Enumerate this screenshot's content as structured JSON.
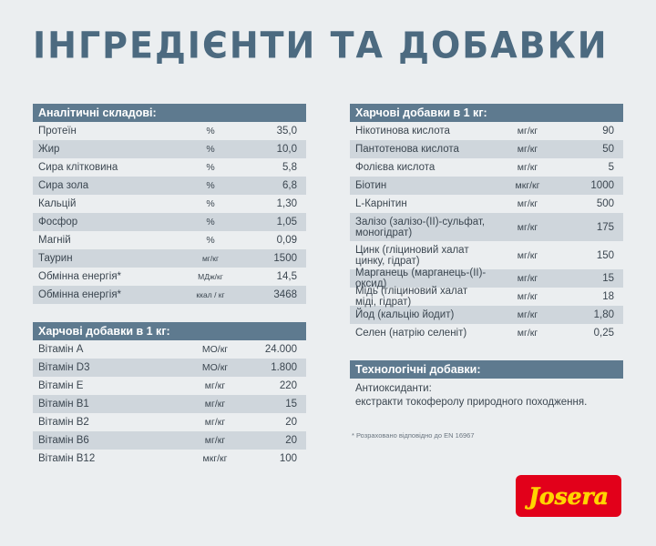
{
  "title": "ІНГРЕДІЄНТИ ТА ДОБАВКИ",
  "analytic": {
    "header": "Аналітичні складові:",
    "rows": [
      {
        "name": "Протеїн",
        "unit": "%",
        "value": "35,0"
      },
      {
        "name": "Жир",
        "unit": "%",
        "value": "10,0"
      },
      {
        "name": "Сира клітковина",
        "unit": "%",
        "value": "5,8"
      },
      {
        "name": "Сира зола",
        "unit": "%",
        "value": "6,8"
      },
      {
        "name": "Кальцій",
        "unit": "%",
        "value": "1,30"
      },
      {
        "name": "Фосфор",
        "unit": "%",
        "value": "1,05"
      },
      {
        "name": "Магній",
        "unit": "%",
        "value": "0,09"
      },
      {
        "name": "Таурин",
        "unit": "мг/кг",
        "value": "1500"
      },
      {
        "name": "Обмінна енергія*",
        "unit": "МДж/кг",
        "value": "14,5"
      },
      {
        "name": "Обмінна енергія*",
        "unit": "ккал / кг",
        "value": "3468"
      }
    ]
  },
  "vitamins": {
    "header": "Харчові добавки в 1 кг:",
    "rows": [
      {
        "name": "Вітамін А",
        "unit": "МО/кг",
        "value": "24.000"
      },
      {
        "name": "Вітамін D3",
        "unit": "МО/кг",
        "value": "1.800"
      },
      {
        "name": "Вітамін Е",
        "unit": "мг/кг",
        "value": "220"
      },
      {
        "name": "Вітамін В1",
        "unit": "мг/кг",
        "value": "15"
      },
      {
        "name": "Вітамін В2",
        "unit": "мг/кг",
        "value": "20"
      },
      {
        "name": "Вітамін В6",
        "unit": "мг/кг",
        "value": "20"
      },
      {
        "name": "Вітамін В12",
        "unit": "мкг/кг",
        "value": "100"
      }
    ]
  },
  "additives": {
    "header": "Харчові добавки в 1 кг:",
    "rows": [
      {
        "name": "Нікотинова кислота",
        "unit": "мг/кг",
        "value": "90"
      },
      {
        "name": "Пантотенова кислота",
        "unit": "мг/кг",
        "value": "50"
      },
      {
        "name": "Фолієва кислота",
        "unit": "мг/кг",
        "value": "5"
      },
      {
        "name": "Біотин",
        "unit": "мкг/кг",
        "value": "1000"
      },
      {
        "name": "L-Карнітин",
        "unit": "мг/кг",
        "value": "500"
      },
      {
        "name": "Залізо (залізо-(ІІ)-сульфат, моногідрат)",
        "unit": "мг/кг",
        "value": "175"
      },
      {
        "name": "Цинк (гліциновий халат цинку, гідрат)",
        "unit": "мг/кг",
        "value": "150"
      },
      {
        "name": "Марганець (марганець-(ІІ)-оксид)",
        "unit": "мг/кг",
        "value": "15"
      },
      {
        "name": "Мідь (гліциновий халат міді, гідрат)",
        "unit": "мг/кг",
        "value": "18"
      },
      {
        "name": "Йод (кальцію йодит)",
        "unit": "мг/кг",
        "value": "1,80"
      },
      {
        "name": "Селен (натрію селеніт)",
        "unit": "мг/кг",
        "value": "0,25"
      }
    ]
  },
  "technological": {
    "header": "Технологічні добавки:",
    "line1": "Антиоксиданти:",
    "line2": "екстракти токоферолу природного походження."
  },
  "footnote": "* Розраховано відповідно до EN 16967",
  "logo_text": "Josera",
  "colors": {
    "header": "#5e7a8f",
    "alt_row": "#cfd6dc",
    "title": "#4c6a80",
    "logo_red": "#e2001a",
    "logo_yellow": "#ffd500"
  }
}
